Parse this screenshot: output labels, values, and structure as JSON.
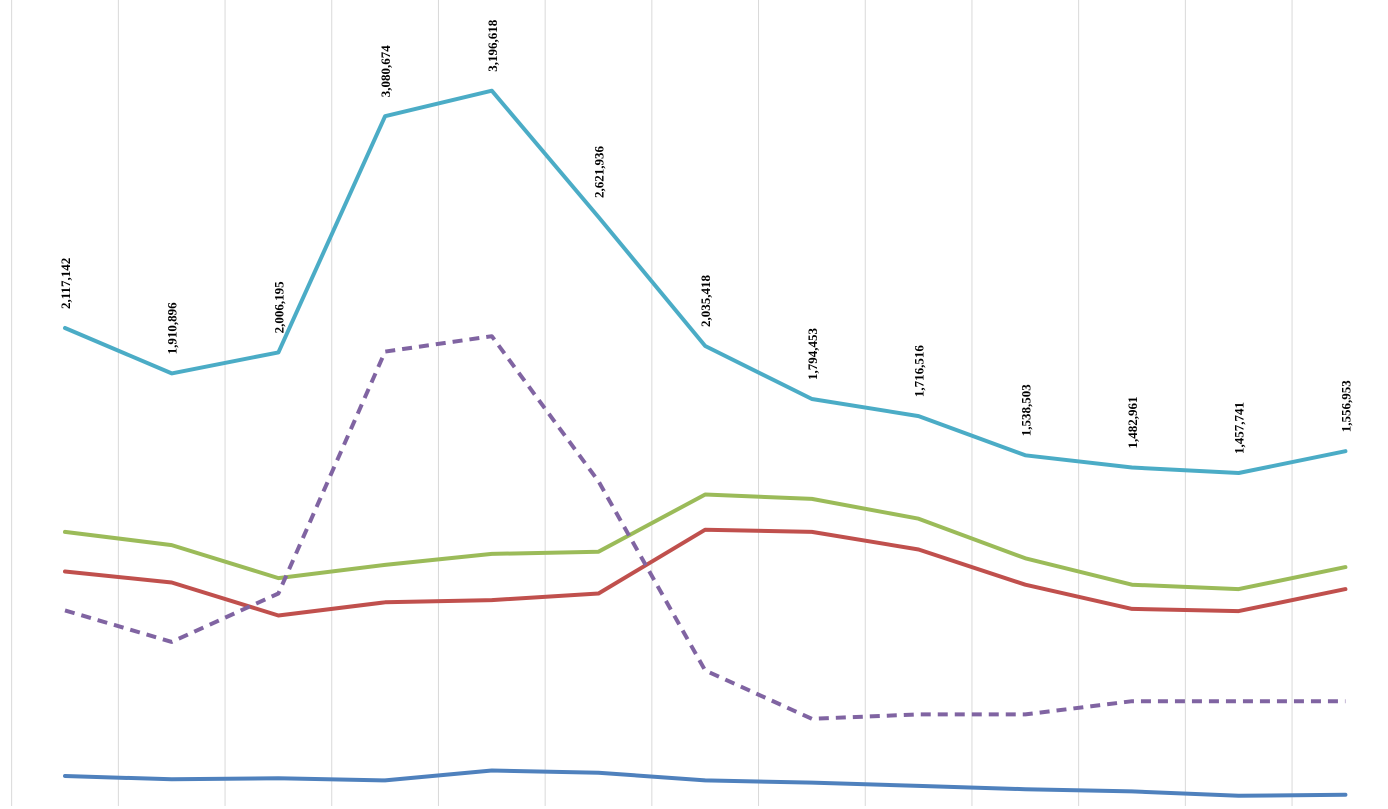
{
  "chart_data": {
    "type": "line",
    "title": "",
    "xlabel": "",
    "ylabel": "",
    "legend": "none",
    "grid": "vertical",
    "ylim": [
      0,
      3400000
    ],
    "x": [
      1,
      2,
      3,
      4,
      5,
      6,
      7,
      8,
      9,
      10,
      11,
      12,
      13
    ],
    "series": [
      {
        "color": "#4bacc6",
        "dash": false,
        "show_labels": true,
        "values": [
          2117142,
          1910896,
          2006195,
          3080674,
          3196618,
          2621936,
          2035418,
          1794453,
          1716516,
          1538503,
          1482961,
          1457741,
          1556953
        ],
        "labels": [
          "2,117,142",
          "1,910,896",
          "2,006,195",
          "3,080,674",
          "3,196,618",
          "2,621,936",
          "2,035,418",
          "1,794,453",
          "1,716,516",
          "1,538,503",
          "1,482,961",
          "1,457,741",
          "1,556,953"
        ]
      },
      {
        "color": "#8064a2",
        "dash": true,
        "show_labels": false,
        "values": [
          833000,
          690000,
          910000,
          2010000,
          2080000,
          1420000,
          560000,
          340000,
          360000,
          360000,
          420000,
          420000,
          420000
        ]
      },
      {
        "color": "#9bbb59",
        "dash": false,
        "show_labels": false,
        "values": [
          1190000,
          1130000,
          980000,
          1040000,
          1090000,
          1100000,
          1360000,
          1340000,
          1250000,
          1070000,
          950000,
          930000,
          1030000
        ]
      },
      {
        "color": "#c0504d",
        "dash": false,
        "show_labels": false,
        "values": [
          1010000,
          960000,
          810000,
          870000,
          880000,
          910000,
          1200000,
          1190000,
          1110000,
          950000,
          840000,
          830000,
          930000
        ]
      },
      {
        "color": "#4f81bd",
        "dash": false,
        "show_labels": false,
        "values": [
          80000,
          65000,
          70000,
          60000,
          105000,
          95000,
          60000,
          50000,
          35000,
          20000,
          10000,
          -10000,
          -5000
        ]
      }
    ]
  }
}
